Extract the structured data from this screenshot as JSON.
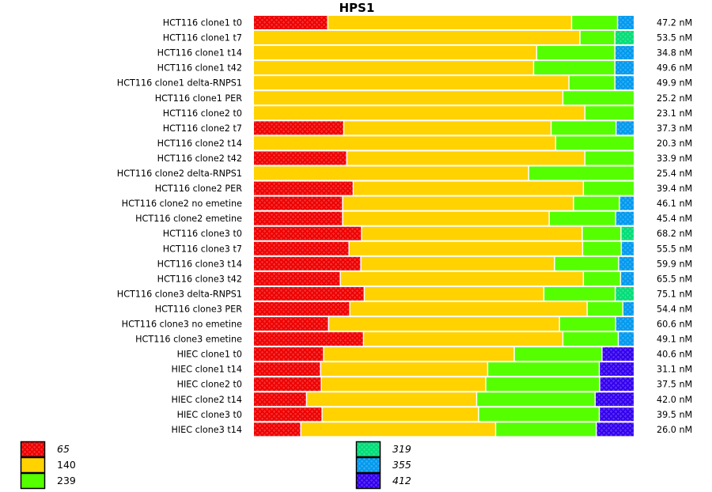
{
  "chart_data": {
    "type": "bar",
    "orientation": "horizontal",
    "stacked": "percent",
    "title": "HPS1",
    "xlabel": "",
    "ylabel": "",
    "series_keys": [
      "65",
      "140",
      "239",
      "319",
      "355",
      "412"
    ],
    "series_colors": {
      "65": "#ee0000",
      "140": "#ffd200",
      "239": "#55ff00",
      "319": "#00dd77",
      "355": "#0099ee",
      "412": "#3300ee"
    },
    "series_patterned": {
      "65": true,
      "140": false,
      "239": false,
      "319": true,
      "355": true,
      "412": true
    },
    "legend": {
      "placement": "bottom",
      "columns": [
        [
          {
            "key": "65",
            "label": "65",
            "italic": true
          },
          {
            "key": "140",
            "label": "140",
            "italic": false
          },
          {
            "key": "239",
            "label": "239",
            "italic": false
          }
        ],
        [
          {
            "key": "319",
            "label": "319",
            "italic": true
          },
          {
            "key": "355",
            "label": "355",
            "italic": true
          },
          {
            "key": "412",
            "label": "412",
            "italic": true
          }
        ]
      ]
    },
    "rows": [
      {
        "label": "HCT116 clone1 t0",
        "total": "47.2 nM",
        "segments": [
          {
            "key": "65",
            "pct": 19.6
          },
          {
            "key": "140",
            "pct": 64.2
          },
          {
            "key": "239",
            "pct": 12.1
          },
          {
            "key": "355",
            "pct": 4.1
          }
        ]
      },
      {
        "label": "HCT116 clone1 t7",
        "total": "53.5 nM",
        "segments": [
          {
            "key": "140",
            "pct": 86.0
          },
          {
            "key": "239",
            "pct": 9.2
          },
          {
            "key": "319",
            "pct": 4.8
          }
        ]
      },
      {
        "label": "HCT116 clone1 t14",
        "total": "34.8 nM",
        "segments": [
          {
            "key": "140",
            "pct": 74.6
          },
          {
            "key": "239",
            "pct": 20.6
          },
          {
            "key": "355",
            "pct": 4.8
          }
        ]
      },
      {
        "label": "HCT116 clone1 t42",
        "total": "49.6 nM",
        "segments": [
          {
            "key": "140",
            "pct": 73.8
          },
          {
            "key": "239",
            "pct": 21.4
          },
          {
            "key": "355",
            "pct": 4.8
          }
        ]
      },
      {
        "label": "HCT116 clone1 delta-RNPS1",
        "total": "49.9 nM",
        "segments": [
          {
            "key": "140",
            "pct": 83.1
          },
          {
            "key": "239",
            "pct": 12.1
          },
          {
            "key": "355",
            "pct": 4.8
          }
        ]
      },
      {
        "label": "HCT116 clone1 PER",
        "total": "25.2 nM",
        "segments": [
          {
            "key": "140",
            "pct": 81.5
          },
          {
            "key": "239",
            "pct": 18.5
          }
        ]
      },
      {
        "label": "HCT116 clone2 t0",
        "total": "23.1 nM",
        "segments": [
          {
            "key": "140",
            "pct": 87.3
          },
          {
            "key": "239",
            "pct": 12.7
          }
        ]
      },
      {
        "label": "HCT116 clone2 t7",
        "total": "37.3 nM",
        "segments": [
          {
            "key": "65",
            "pct": 23.8
          },
          {
            "key": "140",
            "pct": 54.6
          },
          {
            "key": "239",
            "pct": 17.1
          },
          {
            "key": "355",
            "pct": 4.5
          }
        ]
      },
      {
        "label": "HCT116 clone2 t14",
        "total": "20.3 nM",
        "segments": [
          {
            "key": "140",
            "pct": 79.6
          },
          {
            "key": "239",
            "pct": 20.4
          }
        ]
      },
      {
        "label": "HCT116 clone2 t42",
        "total": "33.9 nM",
        "segments": [
          {
            "key": "65",
            "pct": 24.6
          },
          {
            "key": "140",
            "pct": 62.7
          },
          {
            "key": "239",
            "pct": 12.7
          }
        ]
      },
      {
        "label": "HCT116 clone2 delta-RNPS1",
        "total": "25.4 nM",
        "segments": [
          {
            "key": "140",
            "pct": 72.5
          },
          {
            "key": "239",
            "pct": 27.5
          }
        ]
      },
      {
        "label": "HCT116 clone2 PER",
        "total": "39.4 nM",
        "segments": [
          {
            "key": "65",
            "pct": 26.3
          },
          {
            "key": "140",
            "pct": 60.6
          },
          {
            "key": "239",
            "pct": 13.1
          }
        ]
      },
      {
        "label": "HCT116 clone2 no emetine",
        "total": "46.1 nM",
        "segments": [
          {
            "key": "65",
            "pct": 23.5
          },
          {
            "key": "140",
            "pct": 60.8
          },
          {
            "key": "239",
            "pct": 12.1
          },
          {
            "key": "355",
            "pct": 3.6
          }
        ]
      },
      {
        "label": "HCT116 clone2 emetine",
        "total": "45.4 nM",
        "segments": [
          {
            "key": "65",
            "pct": 23.5
          },
          {
            "key": "140",
            "pct": 54.4
          },
          {
            "key": "239",
            "pct": 17.5
          },
          {
            "key": "355",
            "pct": 4.6
          }
        ]
      },
      {
        "label": "HCT116 clone3 t0",
        "total": "68.2 nM",
        "segments": [
          {
            "key": "65",
            "pct": 28.5
          },
          {
            "key": "140",
            "pct": 58.1
          },
          {
            "key": "239",
            "pct": 10.2
          },
          {
            "key": "319",
            "pct": 3.2
          }
        ]
      },
      {
        "label": "HCT116 clone3 t7",
        "total": "55.5 nM",
        "segments": [
          {
            "key": "65",
            "pct": 25.2
          },
          {
            "key": "140",
            "pct": 61.5
          },
          {
            "key": "239",
            "pct": 10.2
          },
          {
            "key": "355",
            "pct": 3.1
          }
        ]
      },
      {
        "label": "HCT116 clone3 t14",
        "total": "59.9 nM",
        "segments": [
          {
            "key": "65",
            "pct": 28.3
          },
          {
            "key": "140",
            "pct": 51.0
          },
          {
            "key": "239",
            "pct": 16.9
          },
          {
            "key": "355",
            "pct": 3.8
          }
        ]
      },
      {
        "label": "HCT116 clone3 t42",
        "total": "65.5 nM",
        "segments": [
          {
            "key": "65",
            "pct": 22.9
          },
          {
            "key": "140",
            "pct": 64.0
          },
          {
            "key": "239",
            "pct": 9.8
          },
          {
            "key": "355",
            "pct": 3.3
          }
        ]
      },
      {
        "label": "HCT116 clone3 delta-RNPS1",
        "total": "75.1 nM",
        "segments": [
          {
            "key": "65",
            "pct": 29.2
          },
          {
            "key": "140",
            "pct": 47.3
          },
          {
            "key": "239",
            "pct": 18.8
          },
          {
            "key": "319",
            "pct": 4.7
          }
        ]
      },
      {
        "label": "HCT116 clone3 PER",
        "total": "54.4 nM",
        "segments": [
          {
            "key": "65",
            "pct": 25.4
          },
          {
            "key": "140",
            "pct": 62.5
          },
          {
            "key": "239",
            "pct": 9.4
          },
          {
            "key": "355",
            "pct": 2.7
          }
        ]
      },
      {
        "label": "HCT116 clone3 no emetine",
        "total": "60.6 nM",
        "segments": [
          {
            "key": "65",
            "pct": 19.8
          },
          {
            "key": "140",
            "pct": 60.8
          },
          {
            "key": "239",
            "pct": 14.8
          },
          {
            "key": "355",
            "pct": 4.6
          }
        ]
      },
      {
        "label": "HCT116 clone3 emetine",
        "total": "49.1 nM",
        "segments": [
          {
            "key": "65",
            "pct": 29.0
          },
          {
            "key": "140",
            "pct": 52.5
          },
          {
            "key": "239",
            "pct": 14.6
          },
          {
            "key": "355",
            "pct": 3.9
          }
        ]
      },
      {
        "label": "HIEC clone1 t0",
        "total": "40.6 nM",
        "segments": [
          {
            "key": "65",
            "pct": 18.5
          },
          {
            "key": "140",
            "pct": 50.2
          },
          {
            "key": "239",
            "pct": 23.1
          },
          {
            "key": "412",
            "pct": 8.2
          }
        ]
      },
      {
        "label": "HIEC clone1 t14",
        "total": "31.1 nM",
        "segments": [
          {
            "key": "65",
            "pct": 17.7
          },
          {
            "key": "140",
            "pct": 44.0
          },
          {
            "key": "239",
            "pct": 29.4
          },
          {
            "key": "412",
            "pct": 8.9
          }
        ]
      },
      {
        "label": "HIEC clone2 t0",
        "total": "37.5 nM",
        "segments": [
          {
            "key": "65",
            "pct": 17.9
          },
          {
            "key": "140",
            "pct": 43.3
          },
          {
            "key": "239",
            "pct": 30.0
          },
          {
            "key": "412",
            "pct": 8.8
          }
        ]
      },
      {
        "label": "HIEC clone2 t14",
        "total": "42.0 nM",
        "segments": [
          {
            "key": "65",
            "pct": 14.0
          },
          {
            "key": "140",
            "pct": 44.8
          },
          {
            "key": "239",
            "pct": 31.2
          },
          {
            "key": "412",
            "pct": 10.0
          }
        ]
      },
      {
        "label": "HIEC clone3 t0",
        "total": "39.5 nM",
        "segments": [
          {
            "key": "65",
            "pct": 18.1
          },
          {
            "key": "140",
            "pct": 41.2
          },
          {
            "key": "239",
            "pct": 31.8
          },
          {
            "key": "412",
            "pct": 8.9
          }
        ]
      },
      {
        "label": "HIEC clone3 t14",
        "total": "26.0 nM",
        "segments": [
          {
            "key": "65",
            "pct": 12.5
          },
          {
            "key": "140",
            "pct": 51.3
          },
          {
            "key": "239",
            "pct": 26.5
          },
          {
            "key": "412",
            "pct": 9.7
          }
        ]
      }
    ]
  }
}
